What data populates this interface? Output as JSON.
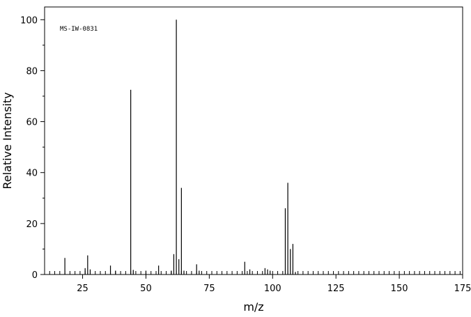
{
  "chart_data": {
    "type": "bar",
    "title": "",
    "annotation": "MS-IW-0831",
    "xlabel": "m/z",
    "ylabel": "Relative Intensity",
    "xlim": [
      10,
      175
    ],
    "ylim": [
      0,
      105
    ],
    "x_ticks": [
      25,
      50,
      75,
      100,
      125,
      150,
      175
    ],
    "y_ticks": [
      0,
      20,
      40,
      60,
      80,
      100
    ],
    "grid": false,
    "legend": "none",
    "peaks": [
      {
        "mz": 18,
        "intensity": 6.5
      },
      {
        "mz": 26,
        "intensity": 2.5
      },
      {
        "mz": 27,
        "intensity": 7.5
      },
      {
        "mz": 28,
        "intensity": 2.0
      },
      {
        "mz": 36,
        "intensity": 3.5
      },
      {
        "mz": 38,
        "intensity": 1.5
      },
      {
        "mz": 44,
        "intensity": 72.5
      },
      {
        "mz": 45,
        "intensity": 1.8
      },
      {
        "mz": 50,
        "intensity": 1.5
      },
      {
        "mz": 55,
        "intensity": 3.5
      },
      {
        "mz": 60,
        "intensity": 1.5
      },
      {
        "mz": 61,
        "intensity": 8.0
      },
      {
        "mz": 62,
        "intensity": 100
      },
      {
        "mz": 63,
        "intensity": 6.0
      },
      {
        "mz": 64,
        "intensity": 34.0
      },
      {
        "mz": 65,
        "intensity": 1.5
      },
      {
        "mz": 70,
        "intensity": 4.0
      },
      {
        "mz": 71,
        "intensity": 1.5
      },
      {
        "mz": 89,
        "intensity": 5.0
      },
      {
        "mz": 91,
        "intensity": 2.0
      },
      {
        "mz": 97,
        "intensity": 2.5
      },
      {
        "mz": 98,
        "intensity": 2.0
      },
      {
        "mz": 99,
        "intensity": 1.5
      },
      {
        "mz": 105,
        "intensity": 26.0
      },
      {
        "mz": 106,
        "intensity": 36.0
      },
      {
        "mz": 107,
        "intensity": 10.0
      },
      {
        "mz": 108,
        "intensity": 12.0
      },
      {
        "mz": 109,
        "intensity": 1.0
      }
    ]
  }
}
